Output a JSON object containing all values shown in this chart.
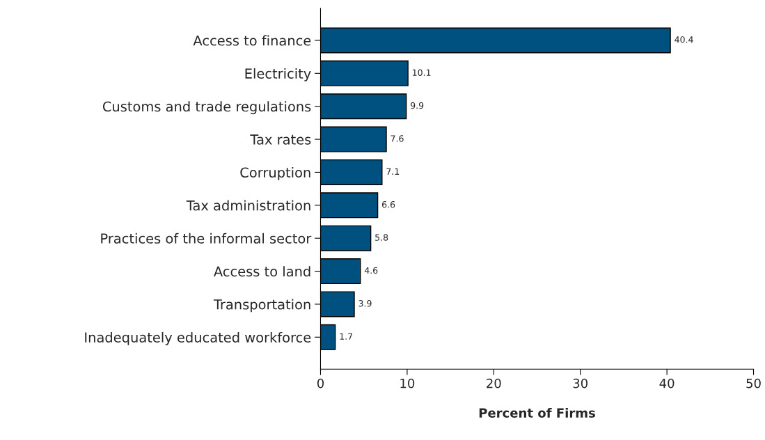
{
  "chart_data": {
    "type": "bar",
    "orientation": "horizontal",
    "xlabel": "Percent of Firms",
    "categories": [
      "Access to finance",
      "Electricity",
      "Customs and trade regulations",
      "Tax rates",
      "Corruption",
      "Tax administration",
      "Practices of the informal sector",
      "Access to land",
      "Transportation",
      "Inadequately educated workforce"
    ],
    "values": [
      40.4,
      10.1,
      9.9,
      7.6,
      7.1,
      6.6,
      5.8,
      4.6,
      3.9,
      1.7
    ],
    "color": "#005080",
    "xlim": [
      0,
      50
    ],
    "xticks": [
      0,
      10,
      20,
      30,
      40,
      50
    ],
    "data_labels": true,
    "grid": false,
    "legend": false
  }
}
